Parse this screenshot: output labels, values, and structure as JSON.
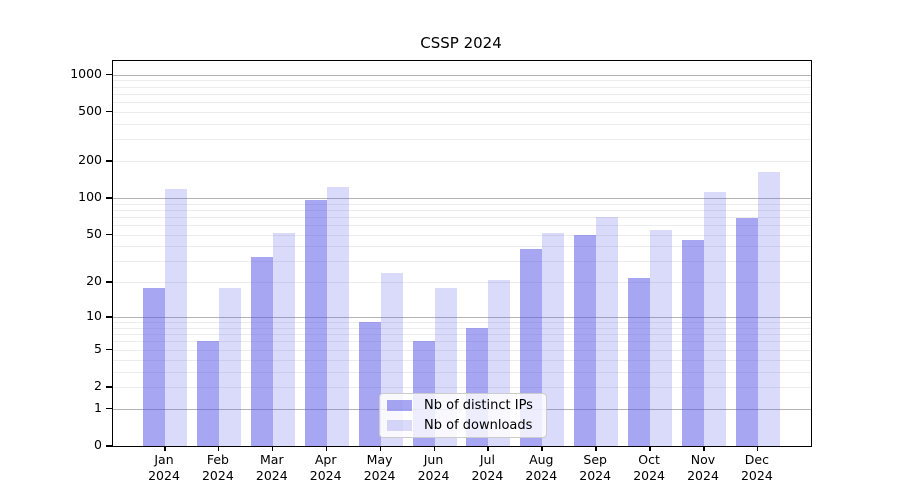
{
  "chart_data": {
    "type": "bar",
    "title": "CSSP 2024",
    "x_tick_months": [
      "Jan",
      "Feb",
      "Mar",
      "Apr",
      "May",
      "Jun",
      "Jul",
      "Aug",
      "Sep",
      "Oct",
      "Nov",
      "Dec"
    ],
    "x_tick_year": "2024",
    "series": [
      {
        "name": "Nb of distinct IPs",
        "color": "rgba(80,80,230,0.51)",
        "values": [
          18,
          6,
          33,
          97,
          9,
          6,
          8,
          38,
          50,
          22,
          45,
          69
        ]
      },
      {
        "name": "Nb of downloads",
        "color": "rgba(80,80,230,0.21)",
        "values": [
          119,
          18,
          52,
          122,
          24,
          18,
          21,
          52,
          70,
          55,
          112,
          163
        ]
      }
    ],
    "y_scale": "log1p",
    "y_ticks": [
      0,
      1,
      2,
      5,
      10,
      20,
      50,
      100,
      200,
      500,
      1000
    ],
    "ylim": [
      0,
      1290
    ],
    "grid": {
      "major_color": "#b4b4b4",
      "minor_color": "#ececec",
      "major_at": [
        1,
        10,
        100,
        1000
      ]
    },
    "legend_position": "lower center"
  }
}
